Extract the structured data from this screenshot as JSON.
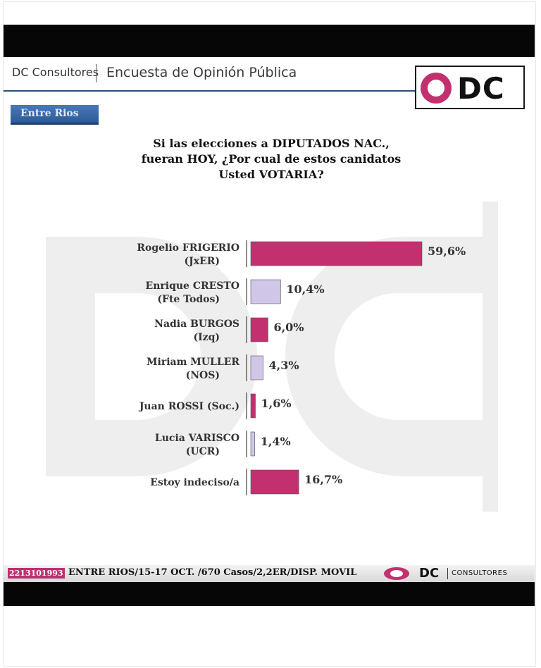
{
  "header": {
    "brand": "DC Consultores",
    "title": "Encuesta de Opinión Pública",
    "logo_text": "DC"
  },
  "region": "Entre Rios",
  "question_lines": [
    "Si las elecciones a DIPUTADOS NAC.,",
    "fueran HOY, ¿Por cual de estos canidatos",
    "Usted VOTARIA?"
  ],
  "colors": {
    "primary": "#c2306f",
    "secondary": "#cfc6e8",
    "badge": "#3a68a8"
  },
  "chart_data": {
    "type": "bar",
    "orientation": "horizontal",
    "categories": [
      [
        "Rogelio FRIGERIO",
        "(JxER)"
      ],
      [
        "Enrique CRESTO",
        "(Fte Todos)"
      ],
      [
        "Nadia BURGOS",
        "(Izq)"
      ],
      [
        "Miriam MULLER",
        "(NOS)"
      ],
      [
        "Juan ROSSI (Soc.)"
      ],
      [
        "Lucia VARISCO",
        "(UCR)"
      ],
      [
        "Estoy indeciso/a"
      ]
    ],
    "values": [
      59.6,
      10.4,
      6.0,
      4.3,
      1.6,
      1.4,
      16.7
    ],
    "value_labels": [
      "59,6%",
      "10,4%",
      "6,0%",
      "4,3%",
      "1,6%",
      "1,4%",
      "16,7%"
    ],
    "bar_colors": [
      "#c2306f",
      "#cfc6e8",
      "#c2306f",
      "#cfc6e8",
      "#c2306f",
      "#cfc6e8",
      "#c2306f"
    ],
    "xlim": [
      0,
      100
    ],
    "title": "",
    "xlabel": "",
    "ylabel": ""
  },
  "footer": {
    "tag": "2213101993",
    "text": "ENTRE RIOS/15-17 OCT. /670 Casos/2,2ER/DISP. MOVIL",
    "dc": "DC",
    "consultores": "CONSULTORES"
  }
}
